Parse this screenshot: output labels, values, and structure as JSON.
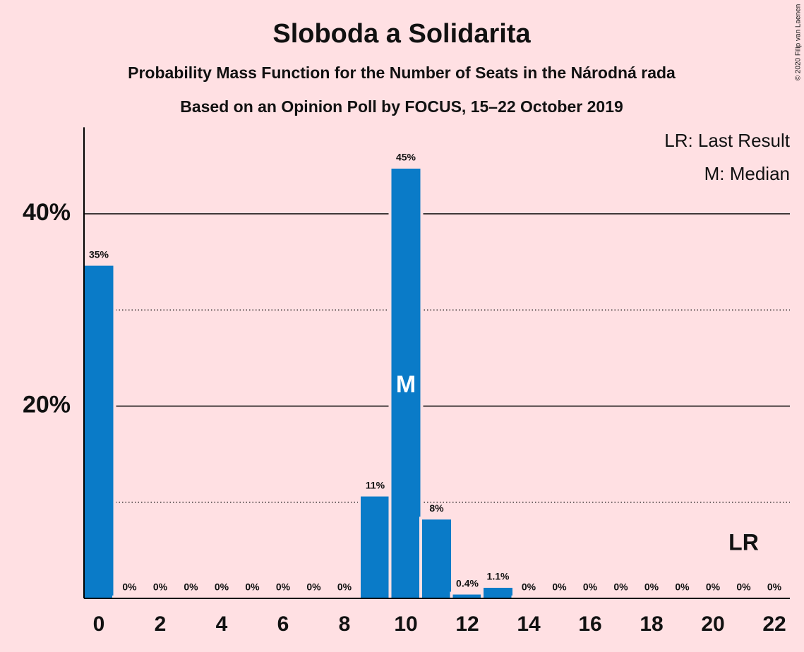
{
  "chart_data": {
    "type": "bar",
    "title": "Sloboda a Solidarita",
    "subtitle": "Probability Mass Function for the Number of Seats in the Národná rada",
    "subtitle2": "Based on an Opinion Poll by FOCUS, 15–22 October 2019",
    "copyright": "© 2020 Filip van Laenen",
    "legend": [
      "LR: Last Result",
      "M: Median"
    ],
    "legend_position": "top-right",
    "x": [
      0,
      1,
      2,
      3,
      4,
      5,
      6,
      7,
      8,
      9,
      10,
      11,
      12,
      13,
      14,
      15,
      16,
      17,
      18,
      19,
      20,
      21,
      22
    ],
    "values": [
      34.6,
      0,
      0,
      0,
      0,
      0,
      0,
      0,
      0,
      10.6,
      44.7,
      8.2,
      0.4,
      1.1,
      0,
      0,
      0,
      0,
      0,
      0,
      0,
      0,
      0
    ],
    "value_labels": [
      "35%",
      "0%",
      "0%",
      "0%",
      "0%",
      "0%",
      "0%",
      "0%",
      "0%",
      "11%",
      "45%",
      "8%",
      "0.4%",
      "1.1%",
      "0%",
      "0%",
      "0%",
      "0%",
      "0%",
      "0%",
      "0%",
      "0%",
      "0%"
    ],
    "color": "#0a7bc8",
    "xlim": [
      -0.5,
      22.5
    ],
    "xticks": [
      0,
      2,
      4,
      6,
      8,
      10,
      12,
      14,
      16,
      18,
      20,
      22
    ],
    "ylim": [
      0,
      49
    ],
    "yticks": [
      {
        "value": 20,
        "label": "20%"
      },
      {
        "value": 40,
        "label": "40%"
      }
    ],
    "minor_gridlines": [
      10,
      30
    ],
    "grid": true,
    "median": {
      "value": 10,
      "label": "M"
    },
    "last_result": {
      "value": 21,
      "label": "LR"
    }
  }
}
